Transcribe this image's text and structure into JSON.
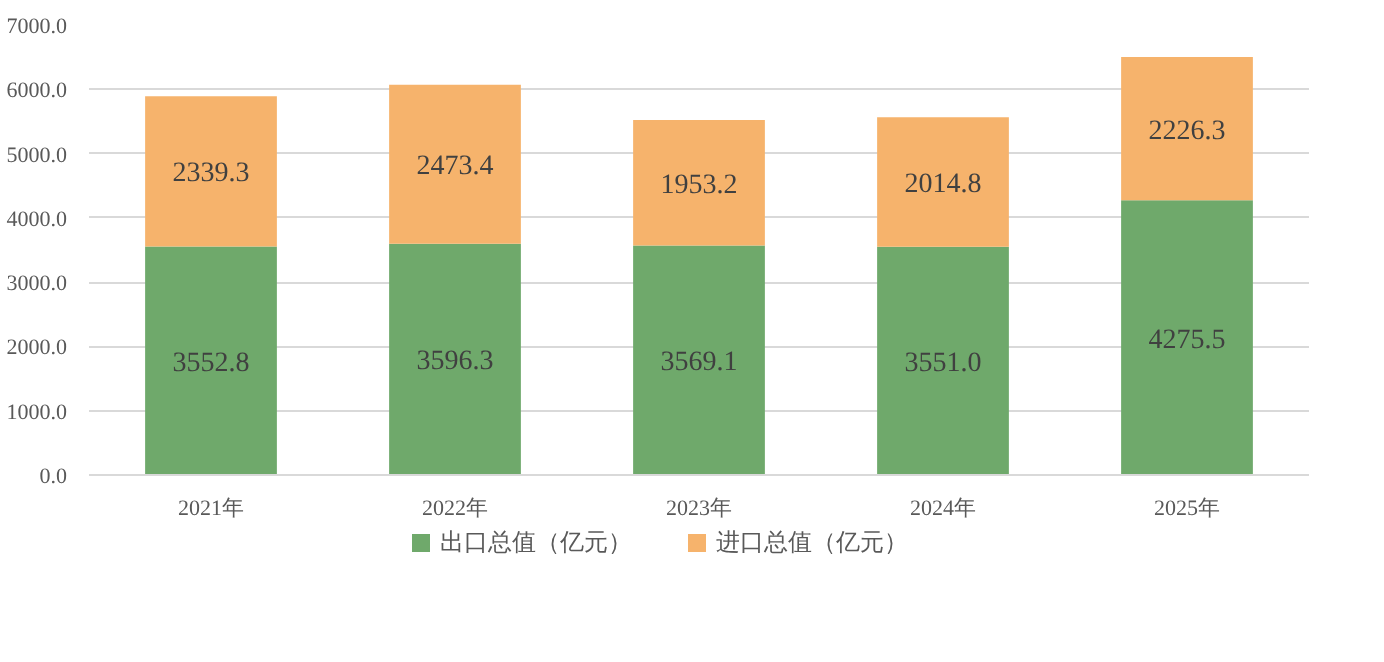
{
  "chart_data": {
    "type": "bar",
    "stacked": true,
    "categories": [
      "2021年",
      "2022年",
      "2023年",
      "2024年",
      "2025年"
    ],
    "series": [
      {
        "name": "出口总值（亿元）",
        "color": "#6fa96b",
        "values": [
          3552.8,
          3596.3,
          3569.1,
          3551.0,
          4275.5
        ],
        "value_labels": [
          "3552.8",
          "3596.3",
          "3569.1",
          "3551.0",
          "4275.5"
        ]
      },
      {
        "name": "进口总值（亿元）",
        "color": "#f6b36c",
        "values": [
          2339.3,
          2473.4,
          1953.2,
          2014.8,
          2226.3
        ],
        "value_labels": [
          "2339.3",
          "2473.4",
          "1953.2",
          "2014.8",
          "2226.3"
        ]
      }
    ],
    "ylim": [
      0,
      7000
    ],
    "yticks": [
      {
        "value": 0,
        "label": "0.0"
      },
      {
        "value": 1000,
        "label": "1000.0"
      },
      {
        "value": 2000,
        "label": "2000.0"
      },
      {
        "value": 3000,
        "label": "3000.0"
      },
      {
        "value": 4000,
        "label": "4000.0"
      },
      {
        "value": 5000,
        "label": "5000.0"
      },
      {
        "value": 6000,
        "label": "6000.0"
      },
      {
        "value": 7000,
        "label": "7000.0"
      }
    ],
    "grid": "y",
    "legend": "bottom"
  }
}
